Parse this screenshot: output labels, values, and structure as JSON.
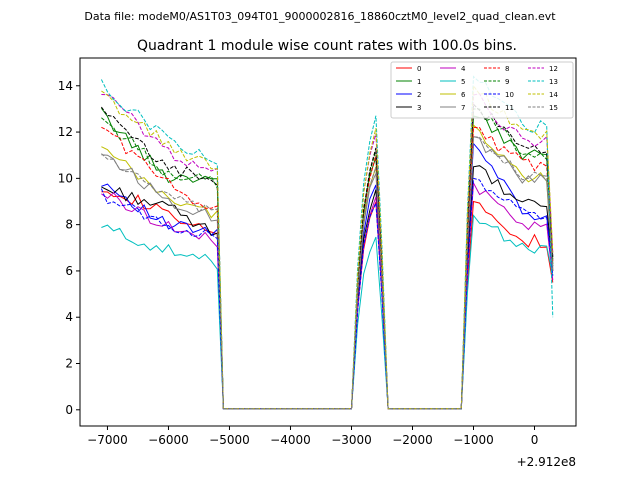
{
  "figure": {
    "suptitle": "Data file: modeM0/AS1T03_094T01_9000002816_18860cztM0_level2_quad_clean.evt"
  },
  "chart_data": {
    "type": "line",
    "title": "Quadrant 1 module wise count rates with 100.0s bins.",
    "xlabel": "",
    "ylabel": "",
    "x_offset_label": "+2.912e8",
    "xlim": [
      -7450,
      680
    ],
    "ylim": [
      -0.7,
      15.2
    ],
    "xticks": [
      -7000,
      -6000,
      -5000,
      -4000,
      -3000,
      -2000,
      -1000,
      0
    ],
    "xtick_labels": [
      "−7000",
      "−6000",
      "−5000",
      "−4000",
      "−3000",
      "−2000",
      "−1000",
      "0"
    ],
    "yticks": [
      0,
      2,
      4,
      6,
      8,
      10,
      12,
      14
    ],
    "ytick_labels": [
      "0",
      "2",
      "4",
      "6",
      "8",
      "10",
      "12",
      "14"
    ],
    "legend_position": "top-right",
    "segments": [
      {
        "name": "orbit-1",
        "x_start": -7100,
        "x_end": -5200,
        "step": 100
      },
      {
        "name": "orbit-2",
        "x_start": -2900,
        "x_end": -2500,
        "step": 100
      },
      {
        "name": "orbit-3",
        "x_start": -1100,
        "x_end": 300,
        "step": 100
      }
    ],
    "gap_value": 0.05,
    "series": [
      {
        "name": "0",
        "color": "#ff0000",
        "dash": "solid",
        "start": [
          9.7,
          8.5,
          7.4
        ],
        "peak": 9.0,
        "end": [
          9.0,
          7.3,
          5.5
        ]
      },
      {
        "name": "1",
        "color": "#008000",
        "dash": "solid",
        "start": [
          12.8,
          10.1,
          10.0
        ],
        "peak": 11.0,
        "end": [
          12.7,
          11.0,
          6.3
        ]
      },
      {
        "name": "2",
        "color": "#0000ff",
        "dash": "solid",
        "start": [
          9.9,
          8.0,
          7.6
        ],
        "peak": 9.8,
        "end": [
          11.5,
          8.5,
          6.0
        ]
      },
      {
        "name": "3",
        "color": "#000000",
        "dash": "solid",
        "start": [
          9.6,
          8.8,
          7.5
        ],
        "peak": 9.4,
        "end": [
          10.5,
          8.8,
          6.2
        ]
      },
      {
        "name": "4",
        "color": "#bf00bf",
        "dash": "solid",
        "start": [
          9.4,
          8.0,
          7.2
        ],
        "peak": 9.2,
        "end": [
          9.8,
          8.0,
          5.6
        ]
      },
      {
        "name": "5",
        "color": "#00bfbf",
        "dash": "solid",
        "start": [
          7.9,
          6.9,
          6.3
        ],
        "peak": 7.4,
        "end": [
          8.4,
          7.0,
          5.8
        ]
      },
      {
        "name": "6",
        "color": "#bfbf00",
        "dash": "solid",
        "start": [
          11.3,
          9.2,
          8.4
        ],
        "peak": 10.6,
        "end": [
          12.3,
          10.0,
          6.0
        ]
      },
      {
        "name": "7",
        "color": "#808080",
        "dash": "solid",
        "start": [
          11.2,
          9.1,
          8.3
        ],
        "peak": 10.3,
        "end": [
          11.8,
          9.9,
          6.1
        ]
      },
      {
        "name": "8",
        "color": "#ff0000",
        "dash": "dashed",
        "start": [
          12.3,
          9.8,
          8.6
        ],
        "peak": 10.9,
        "end": [
          12.2,
          10.6,
          6.4
        ]
      },
      {
        "name": "9",
        "color": "#008000",
        "dash": "dashed",
        "start": [
          12.6,
          10.3,
          9.8
        ],
        "peak": 11.1,
        "end": [
          13.0,
          11.1,
          6.5
        ]
      },
      {
        "name": "10",
        "color": "#0000ff",
        "dash": "dashed",
        "start": [
          9.3,
          8.0,
          7.4
        ],
        "peak": 9.0,
        "end": [
          10.0,
          8.4,
          5.8
        ]
      },
      {
        "name": "11",
        "color": "#000000",
        "dash": "dashed",
        "start": [
          12.9,
          10.5,
          9.9
        ],
        "peak": 11.2,
        "end": [
          13.2,
          11.2,
          6.6
        ]
      },
      {
        "name": "12",
        "color": "#bf00bf",
        "dash": "dashed",
        "start": [
          13.8,
          11.2,
          10.2
        ],
        "peak": 11.9,
        "end": [
          13.6,
          11.5,
          6.7
        ]
      },
      {
        "name": "13",
        "color": "#00bfbf",
        "dash": "dashed",
        "start": [
          14.0,
          11.8,
          10.6
        ],
        "peak": 12.6,
        "end": [
          14.4,
          12.2,
          4.0
        ]
      },
      {
        "name": "14",
        "color": "#bfbf00",
        "dash": "dashed",
        "start": [
          13.6,
          11.5,
          10.3
        ],
        "peak": 12.1,
        "end": [
          14.0,
          11.9,
          6.8
        ]
      },
      {
        "name": "15",
        "color": "#808080",
        "dash": "dashed",
        "start": [
          11.1,
          9.2,
          8.4
        ],
        "peak": 10.5,
        "end": [
          11.8,
          10.0,
          6.0
        ]
      }
    ]
  }
}
